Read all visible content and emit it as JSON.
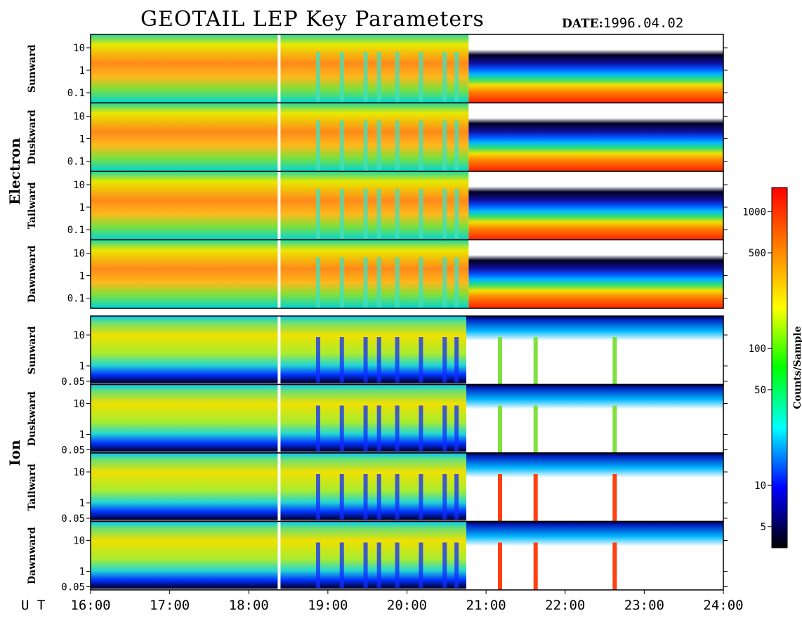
{
  "title": "GEOTAIL LEP Key Parameters",
  "date_label": "DATE:",
  "date_value": "1996.04.02",
  "chart_data": {
    "type": "heatmap",
    "x_axis": {
      "prefix": "U T",
      "range": [
        "16:00",
        "24:00"
      ],
      "ticks": [
        "16:00",
        "17:00",
        "18:00",
        "19:00",
        "20:00",
        "21:00",
        "22:00",
        "23:00",
        "24:00"
      ]
    },
    "groups": [
      {
        "name": "Electron",
        "panels": [
          {
            "name": "Sunward",
            "y_ticks": [
              "10",
              "1",
              "0.1"
            ]
          },
          {
            "name": "Duskward",
            "y_ticks": [
              "10",
              "1",
              "0.1"
            ]
          },
          {
            "name": "Tailward",
            "y_ticks": [
              "10",
              "1",
              "0.1"
            ]
          },
          {
            "name": "Dawnward",
            "y_ticks": [
              "10",
              "1",
              "0.1"
            ]
          }
        ]
      },
      {
        "name": "Ion",
        "panels": [
          {
            "name": "Sunward",
            "y_ticks": [
              "10",
              "1",
              "0.05"
            ]
          },
          {
            "name": "Duskward",
            "y_ticks": [
              "10",
              "1",
              "0.05"
            ]
          },
          {
            "name": "Tailward",
            "y_ticks": [
              "10",
              "1",
              "0.05"
            ]
          },
          {
            "name": "Dawnward",
            "y_ticks": [
              "10",
              "1",
              "0.05"
            ]
          }
        ]
      }
    ],
    "colorbar": {
      "label": "Counts/Sample",
      "scale": "log",
      "ticks": [
        "1000",
        "500",
        "100",
        "50",
        "10",
        "5"
      ],
      "colors": [
        "#000000",
        "#0000ff",
        "#00ffff",
        "#00ff00",
        "#ffff00",
        "#ff8000",
        "#ff0000"
      ]
    },
    "data_gap": "18:23"
  }
}
